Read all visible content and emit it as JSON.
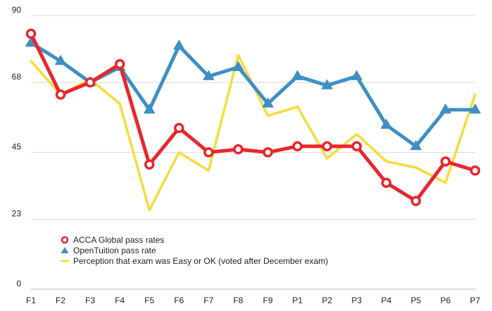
{
  "chart_data": {
    "type": "line",
    "title": "",
    "xlabel": "",
    "ylabel": "",
    "categories": [
      "F1",
      "F2",
      "F3",
      "F4",
      "F5",
      "F6",
      "F7",
      "F8",
      "F9",
      "P1",
      "P2",
      "P3",
      "P4",
      "P5",
      "P6",
      "P7"
    ],
    "y_ticks": [
      "0",
      "23",
      "45",
      "68",
      "90"
    ],
    "ylim": [
      0,
      90
    ],
    "grid": "horizontal",
    "legend_position": "bottom-left",
    "series": [
      {
        "name": "ACCA Global pass rates",
        "color": "#e8262c",
        "marker": "circle",
        "values": [
          84,
          64,
          68,
          74,
          41,
          53,
          45,
          46,
          45,
          47,
          47,
          47,
          35,
          29,
          42,
          39
        ]
      },
      {
        "name": "OpenTuition pass rate",
        "color": "#3e8fc4",
        "marker": "triangle",
        "values": [
          81,
          75,
          68,
          73,
          59,
          80,
          70,
          73,
          61,
          70,
          67,
          70,
          54,
          47,
          59,
          59
        ]
      },
      {
        "name": "Perception that exam was Easy or OK (voted after December exam)",
        "color": "#f5dc3c",
        "marker": "none",
        "values": [
          75,
          64,
          69,
          61,
          26,
          45,
          39,
          77,
          57,
          60,
          43,
          51,
          42,
          40,
          35,
          64
        ]
      }
    ]
  }
}
